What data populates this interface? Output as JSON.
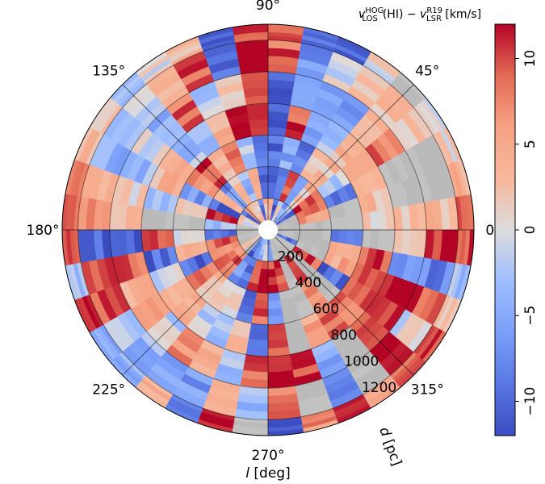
{
  "chart_data": {
    "type": "heatmap",
    "projection": "polar",
    "title": "",
    "xlabel": "l [deg]",
    "ylabel": "d [pc]",
    "colorbar": {
      "label_html": "v<sub>LOS</sub><sup>HOG</sup>(HI) − v<sub>LSR</sub><sup>R19</sup> [km/s]",
      "label_parts": {
        "v1": "v",
        "sup1": "HOG",
        "sub1": "LOS",
        "mid": "(HI) − ",
        "v2": "v",
        "sup2": "R19",
        "sub2": "LSR",
        "unit": " [km/s]"
      },
      "cmap": "coolwarm",
      "vmin": -12,
      "vmax": 12,
      "ticks": [
        -10,
        -5,
        0,
        5,
        10
      ],
      "tick_labels": [
        "−10",
        "−5",
        "0",
        "5",
        "10"
      ]
    },
    "angular_ticks": [
      0,
      45,
      90,
      135,
      180,
      225,
      270,
      315
    ],
    "angular_tick_labels": [
      "0°",
      "45°",
      "90°",
      "135°",
      "180°",
      "225°",
      "270°",
      "315°"
    ],
    "radial_ticks": [
      200,
      400,
      600,
      800,
      1000,
      1200
    ],
    "radial_tick_labels": [
      "200",
      "400",
      "600",
      "800",
      "1000",
      "1200"
    ],
    "rlim": [
      0,
      1300
    ],
    "inner_hole_pc": 60,
    "missing_color": "#bdbdbd",
    "grid": true,
    "sector_width_deg": 10,
    "radial_bins_pc": [
      60,
      200,
      400,
      600,
      800,
      1000,
      1200,
      1300
    ],
    "values_note": "Each row = one 10° longitude sector starting at l=0 going counterclockwise; each entry = approximate mean dv (km/s) in radial bin; null = no data (gray).",
    "values": [
      [
        null,
        null,
        null,
        1,
        3,
        3,
        8
      ],
      [
        null,
        6,
        null,
        3,
        null,
        null,
        4
      ],
      [
        null,
        9,
        -10,
        3,
        null,
        null,
        1
      ],
      [
        -9,
        10,
        -2,
        3,
        9,
        3,
        0
      ],
      [
        -3,
        3,
        3,
        3,
        4,
        3,
        null
      ],
      [
        -5,
        -8,
        2,
        -3,
        -7,
        2,
        0
      ],
      [
        0,
        10,
        -9,
        -5,
        -6,
        0,
        -10
      ],
      [
        -10,
        -10,
        -5,
        10,
        -3,
        -7,
        -9
      ],
      [
        3,
        -9,
        -10,
        -10,
        -10,
        9,
        11
      ],
      [
        3,
        -11,
        -10,
        11,
        9,
        11,
        9
      ],
      [
        -9,
        3,
        -2,
        11,
        1,
        -10,
        -10
      ],
      [
        1,
        -4,
        10,
        4,
        -2,
        10,
        3
      ],
      [
        1,
        3,
        4,
        -3,
        9,
        3,
        0
      ],
      [
        4,
        -7,
        10,
        -3,
        -5,
        0,
        -2
      ],
      [
        -9,
        3,
        6,
        3,
        0,
        -3,
        3
      ],
      [
        2,
        -10,
        -6,
        4,
        -4,
        -4,
        3
      ],
      [
        0,
        10,
        0,
        -3,
        1,
        3,
        10
      ],
      [
        null,
        -3,
        null,
        null,
        3,
        6,
        9
      ],
      [
        null,
        -10,
        1,
        11,
        -10,
        -10,
        11
      ],
      [
        null,
        9,
        3,
        -10,
        9,
        10,
        -3
      ],
      [
        null,
        6,
        -10,
        -1,
        5,
        9,
        10
      ],
      [
        3,
        8,
        9,
        5,
        6,
        -3,
        -6
      ],
      [
        null,
        9,
        3,
        4,
        -1,
        -4,
        -5
      ],
      [
        -10,
        -6,
        1,
        -2,
        7,
        -5,
        3
      ],
      [
        -5,
        -10,
        2,
        -3,
        5,
        -6,
        -10
      ],
      [
        -3,
        11,
        -9,
        3,
        -3,
        4,
        11
      ],
      [
        -2,
        11,
        9,
        -10,
        10,
        -3,
        null
      ],
      [
        -8,
        11,
        -5,
        11,
        11,
        9,
        -10
      ],
      [
        null,
        10,
        null,
        null,
        11,
        null,
        7
      ],
      [
        null,
        null,
        null,
        5,
        -5,
        -7,
        10
      ],
      [
        null,
        9,
        7,
        10,
        null,
        null,
        4
      ],
      [
        null,
        null,
        null,
        9,
        8,
        11,
        10
      ],
      [
        null,
        10,
        -10,
        11,
        10,
        0,
        11
      ],
      [
        -9,
        null,
        5,
        10,
        11,
        10,
        3
      ],
      [
        null,
        null,
        3,
        10,
        -7,
        -8,
        -3
      ],
      [
        null,
        null,
        -10,
        null,
        1,
        11,
        10
      ]
    ]
  }
}
